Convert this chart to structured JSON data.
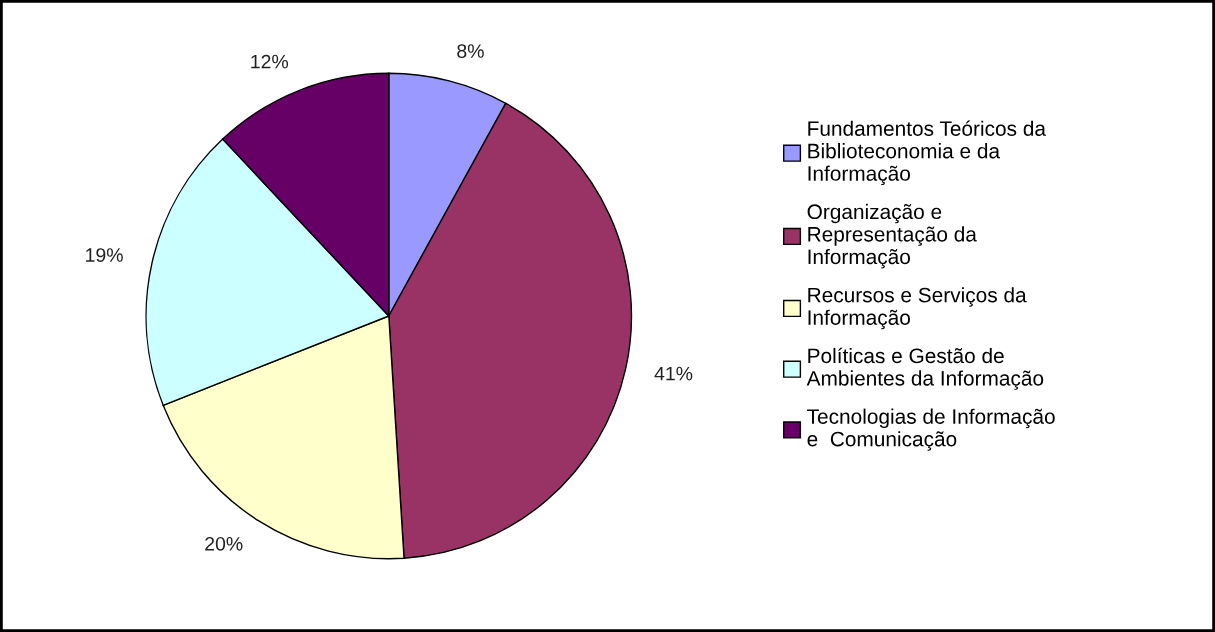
{
  "chart_data": {
    "type": "pie",
    "categories": [
      "Fundamentos Teóricos da\nBiblioteconomia e da\nInformação",
      "Organização e\nRepresentação da\nInformação",
      "Recursos e Serviços da\nInformação",
      "Políticas e Gestão de\nAmbientes da Informação",
      "Tecnologias de Informação\ne  Comunicação"
    ],
    "values": [
      8,
      41,
      20,
      19,
      12
    ],
    "colors": [
      "#9999ff",
      "#993366",
      "#ffffcc",
      "#ccffff",
      "#660066"
    ],
    "value_labels": [
      "8%",
      "41%",
      "20%",
      "19%",
      "12%"
    ],
    "legend": "right"
  }
}
